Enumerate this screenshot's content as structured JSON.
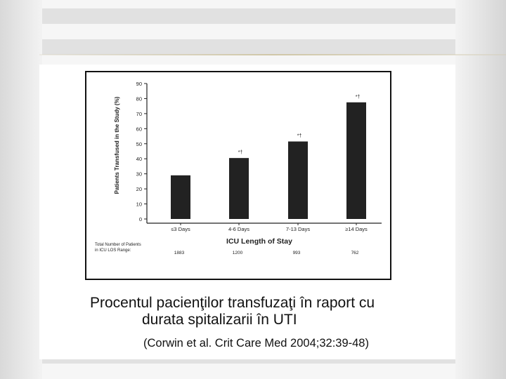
{
  "chart_data": {
    "type": "bar",
    "categories": [
      "≤3 Days",
      "4-6 Days",
      "7-13 Days",
      "≥14 Days"
    ],
    "values": [
      29,
      40.5,
      51.5,
      77.5
    ],
    "annotations": [
      "",
      "*†",
      "*†",
      "*†"
    ],
    "ylabel": "Patients Transfused in the Study (%)",
    "xlabel": "ICU Length of Stay",
    "ylim": [
      0,
      90
    ],
    "yticks": [
      0,
      10,
      20,
      30,
      40,
      50,
      60,
      70,
      80,
      90
    ],
    "grid": false,
    "bar_color": "#222222",
    "patients_label": [
      "Total Number of Patients",
      "in ICU LOS Range:"
    ],
    "patients_counts": [
      "1883",
      "1200",
      "993",
      "762"
    ]
  },
  "caption": {
    "line1": "Procentul pacienţilor transfuzaţi în raport cu",
    "line2": "durata spitalizarii în UTI",
    "citation": "(Corwin et al. Crit Care Med 2004;32:39-48)"
  }
}
